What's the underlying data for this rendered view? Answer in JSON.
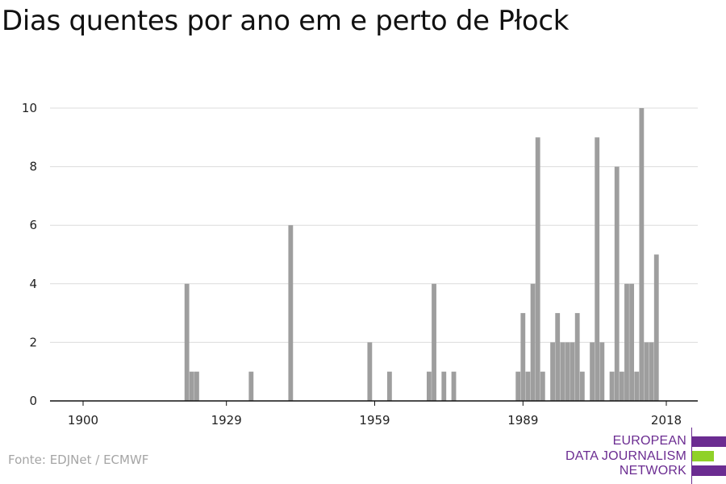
{
  "title": "Dias quentes por ano em e perto de Płock",
  "source": "Fonte: EDJNet / ECMWF",
  "logo": {
    "lines": [
      "EUROPEAN",
      "DATA JOURNALISM",
      "NETWORK"
    ],
    "colors": {
      "purple": "#6b2c91",
      "green": "#8fd128"
    }
  },
  "chart_data": {
    "type": "bar",
    "title": "Dias quentes por ano em e perto de Płock",
    "xlabel": "",
    "ylabel": "",
    "xlim": [
      1900,
      2018
    ],
    "ylim": [
      0,
      10
    ],
    "xticks": [
      1900,
      1929,
      1959,
      1989,
      2018
    ],
    "yticks": [
      0,
      2,
      4,
      6,
      8,
      10
    ],
    "grid": true,
    "bar_color": "#9e9e9e",
    "x": [
      1921,
      1922,
      1923,
      1934,
      1942,
      1958,
      1962,
      1970,
      1971,
      1973,
      1975,
      1988,
      1989,
      1990,
      1991,
      1992,
      1993,
      1995,
      1996,
      1997,
      1998,
      1999,
      2000,
      2001,
      2003,
      2004,
      2005,
      2007,
      2008,
      2009,
      2010,
      2011,
      2012,
      2013,
      2014,
      2015,
      2016
    ],
    "values": [
      4,
      1,
      1,
      1,
      6,
      2,
      1,
      1,
      4,
      1,
      1,
      1,
      3,
      1,
      4,
      9,
      1,
      2,
      3,
      2,
      2,
      2,
      3,
      1,
      2,
      9,
      2,
      1,
      8,
      1,
      4,
      4,
      1,
      10,
      2,
      2,
      5
    ]
  }
}
